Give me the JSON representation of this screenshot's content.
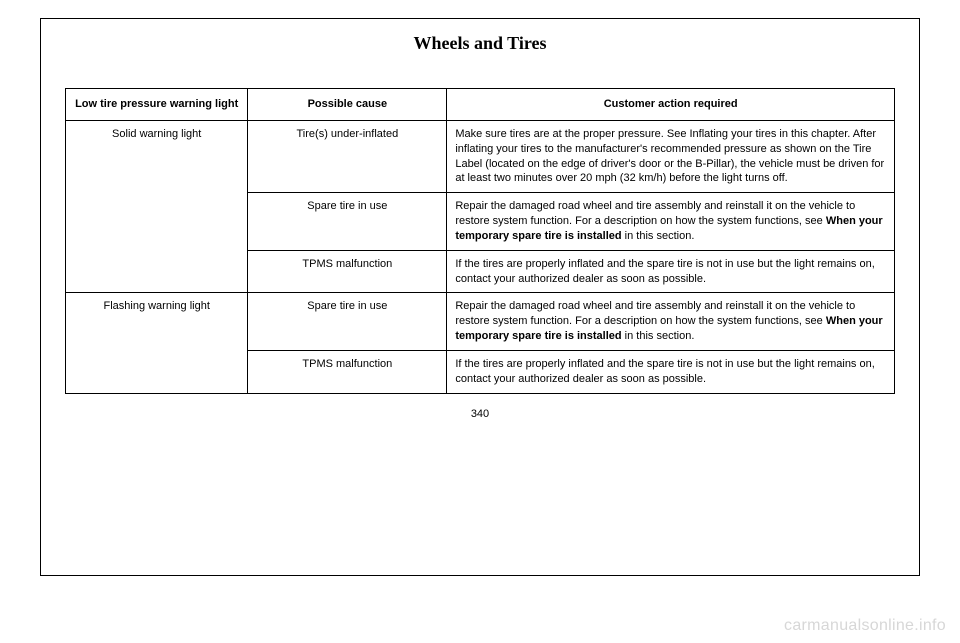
{
  "doc": {
    "section_title": "Wheels and Tires",
    "page_number": "340",
    "watermark": "carmanualsonline.info"
  },
  "table": {
    "headers": {
      "h1": "Low tire pressure warning light",
      "h2": "Possible cause",
      "h3": "Customer action required"
    },
    "rows": {
      "r1": {
        "col1": "Solid warning light",
        "col2": "Tire(s) under-inflated",
        "col3": "Make sure tires are at the proper pressure. See Inflating your tires in this chapter. After inflating your tires to the manufacturer's recommended pressure as shown on the Tire Label (located on the edge of driver's door or the B-Pillar), the vehicle must be driven for at least two minutes over 20 mph (32 km/h) before the light turns off."
      },
      "r2": {
        "col2": "Spare tire in use",
        "col3_pre": "Repair the damaged road wheel and tire assembly and reinstall it on the vehicle to restore system function. For a description on how the system functions, see ",
        "col3_bold": "When your temporary spare tire is installed",
        "col3_post": " in this section."
      },
      "r3": {
        "col2": "TPMS malfunction",
        "col3": "If the tires are properly inflated and the spare tire is not in use but the light remains on, contact your authorized dealer as soon as possible."
      },
      "r4": {
        "col1": "Flashing warning light",
        "col2": "Spare tire in use",
        "col3_pre": "Repair the damaged road wheel and tire assembly and reinstall it on the vehicle to restore system function. For a description on how the system functions, see ",
        "col3_bold": "When your temporary spare tire is installed",
        "col3_post": " in this section."
      },
      "r5": {
        "col2": "TPMS malfunction",
        "col3": "If the tires are properly inflated and the spare tire is not in use but the light remains on, contact your authorized dealer as soon as possible."
      }
    }
  }
}
